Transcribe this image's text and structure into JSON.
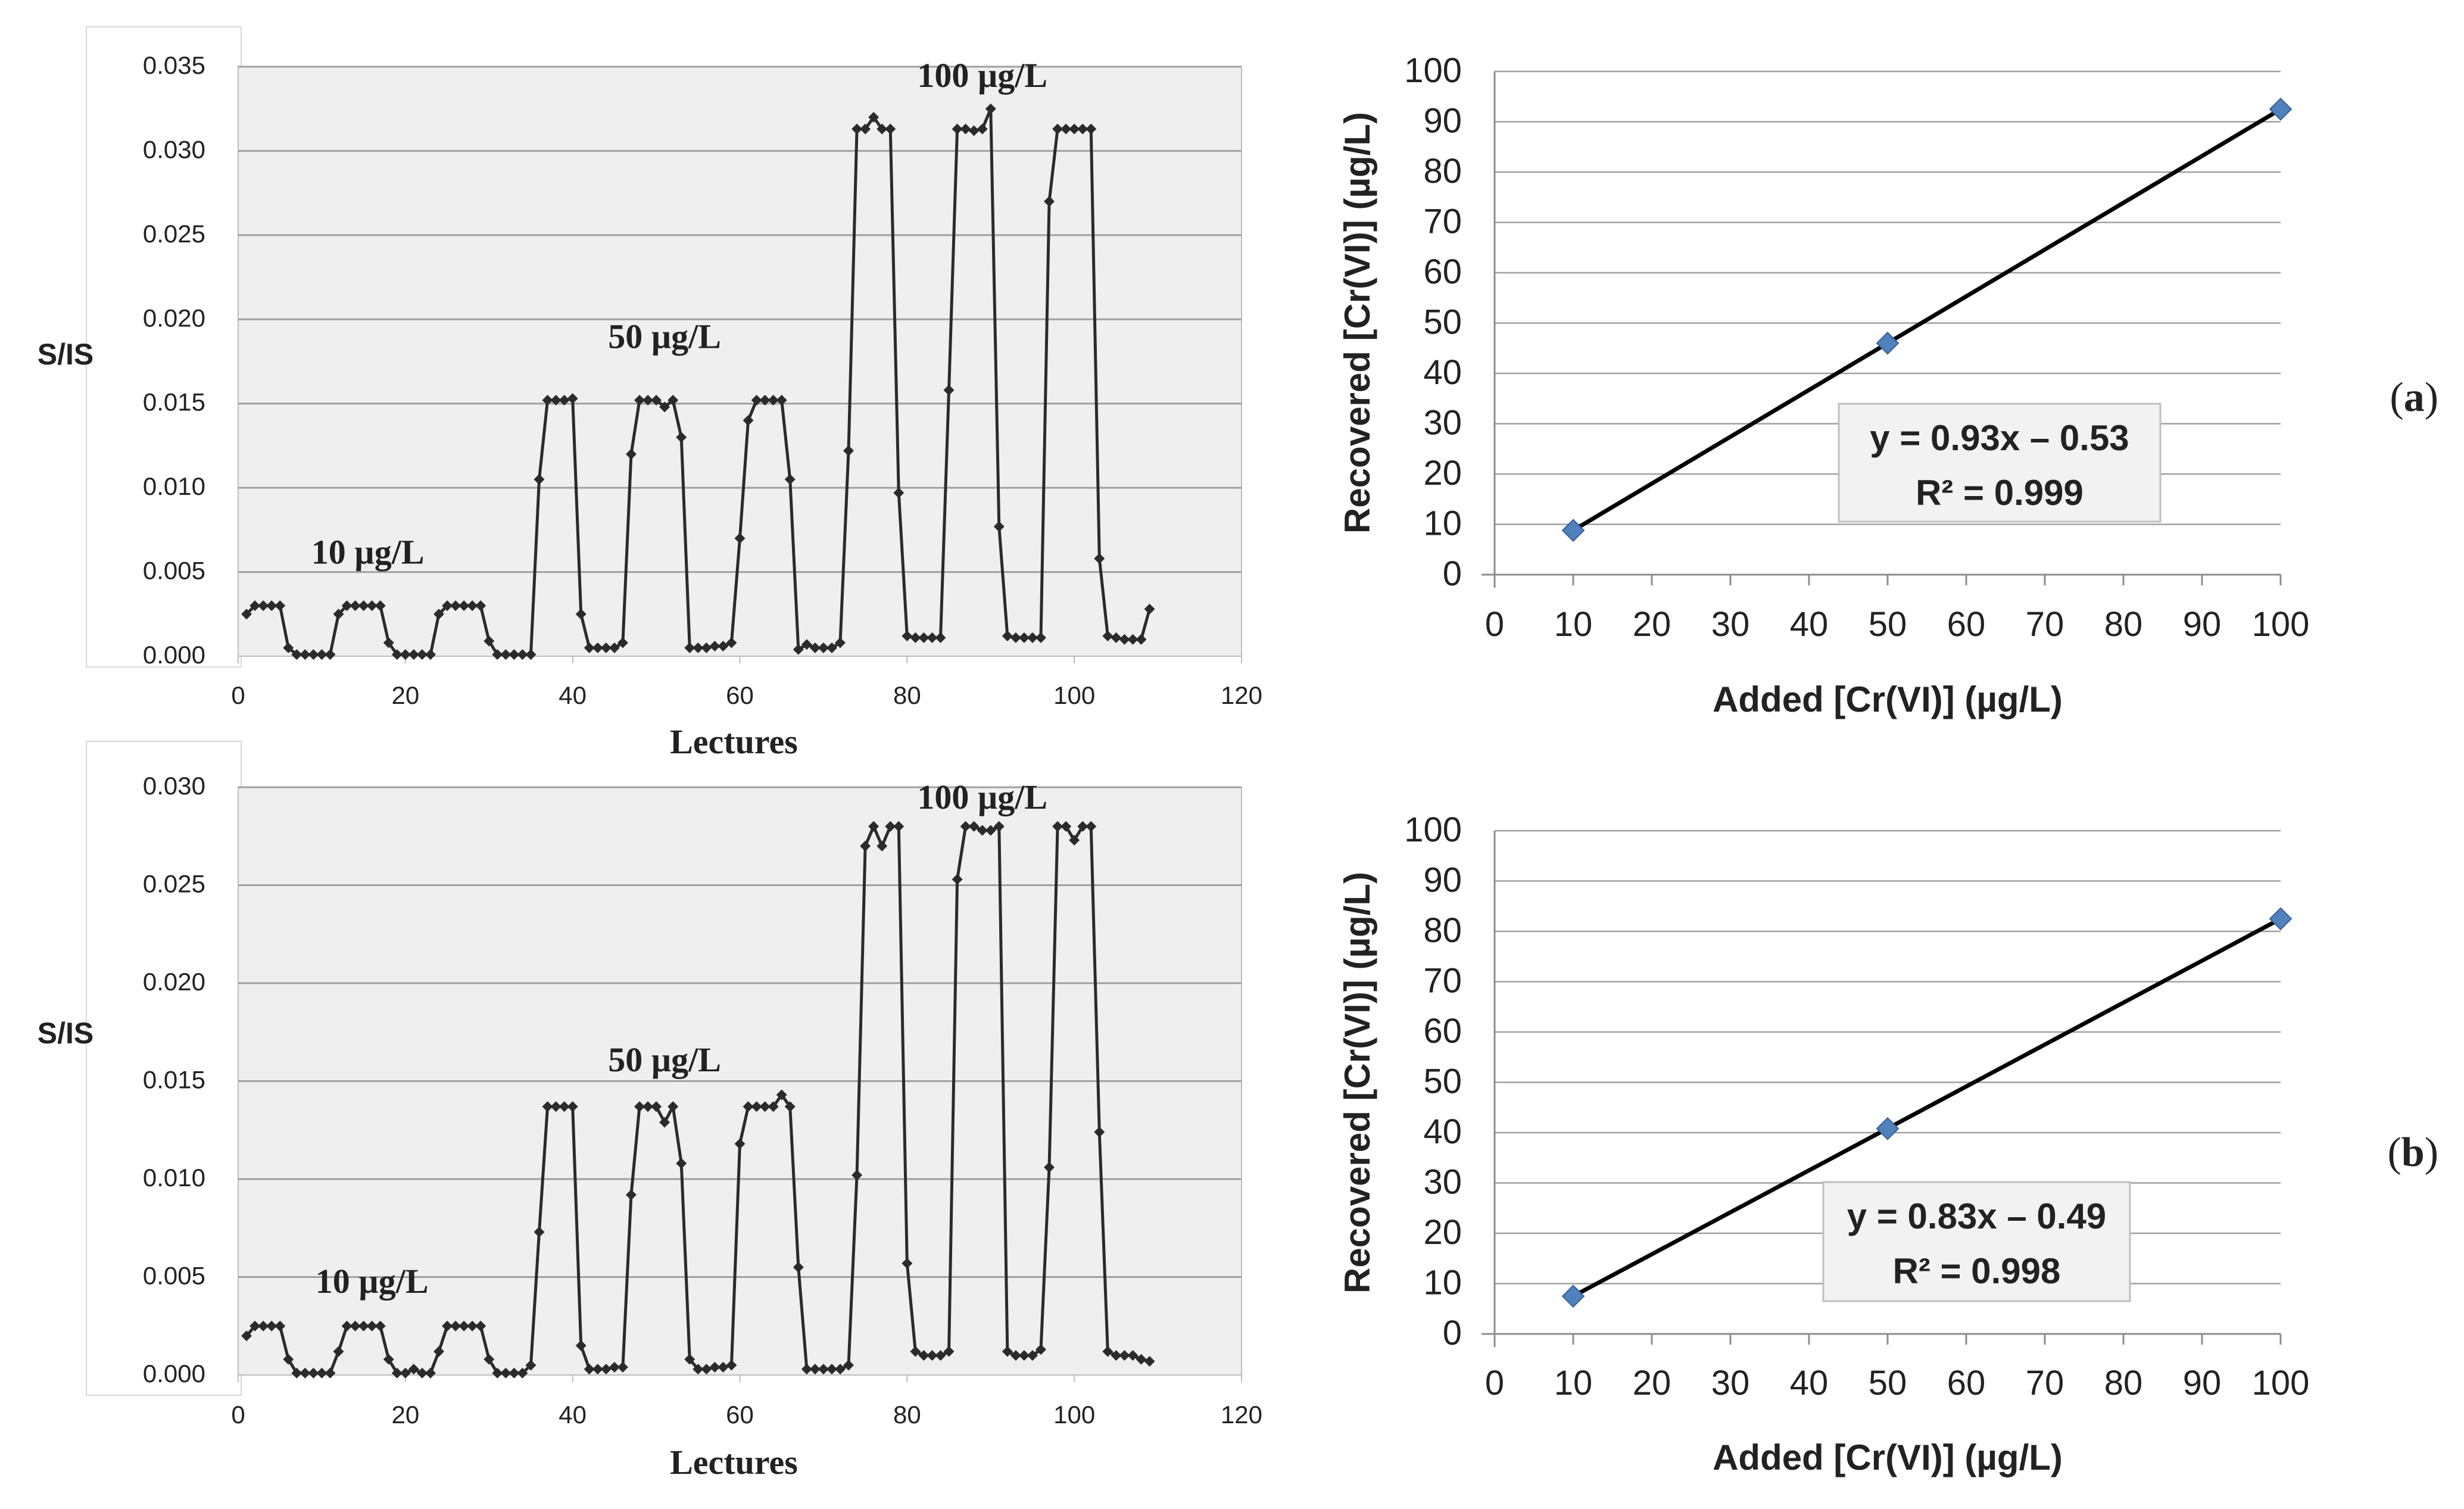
{
  "chart_data": [
    {
      "id": "a-left",
      "type": "line",
      "title": "",
      "xlabel": "Lectures",
      "ylabel": "S/IS",
      "xlim": [
        0,
        120
      ],
      "ylim": [
        0,
        0.035
      ],
      "xticks": [
        "0",
        "20",
        "40",
        "60",
        "80",
        "100",
        "120"
      ],
      "yticks": [
        "0.000",
        "0.005",
        "0.010",
        "0.015",
        "0.020",
        "0.025",
        "0.030",
        "0.035"
      ],
      "annotations": [
        {
          "text": "10 µg/L",
          "x": 15.5,
          "y": 0.0055
        },
        {
          "text": "50 µg/L",
          "x": 51,
          "y": 0.0183
        },
        {
          "text": "100 µg/L",
          "x": 89,
          "y": 0.0338
        }
      ],
      "series": [
        {
          "name": "S/IS",
          "x": [
            1,
            2,
            3,
            4,
            5,
            6,
            7,
            8,
            9,
            10,
            11,
            12,
            13,
            14,
            15,
            16,
            17,
            18,
            19,
            20,
            21,
            22,
            23,
            24,
            25,
            26,
            27,
            28,
            29,
            30,
            31,
            32,
            33,
            34,
            35,
            36,
            37,
            38,
            39,
            40,
            41,
            42,
            43,
            44,
            45,
            46,
            47,
            48,
            49,
            50,
            51,
            52,
            53,
            54,
            55,
            56,
            57,
            58,
            59,
            60,
            61,
            62,
            63,
            64,
            65,
            66,
            67,
            68,
            69,
            70,
            71,
            72,
            73,
            74,
            75,
            76,
            77,
            78,
            79,
            80,
            81,
            82,
            83,
            84,
            85,
            86,
            87,
            88,
            89,
            90,
            91,
            92,
            93,
            94,
            95,
            96,
            97,
            98,
            99,
            100,
            101,
            102,
            103,
            104,
            105,
            106,
            107,
            108,
            109
          ],
          "values": [
            0.0025,
            0.003,
            0.003,
            0.003,
            0.003,
            0.0005,
            0.0001,
            0.0001,
            0.0001,
            0.0001,
            0.0001,
            0.0025,
            0.003,
            0.003,
            0.003,
            0.003,
            0.003,
            0.0008,
            0.0001,
            0.0001,
            0.0001,
            0.0001,
            0.0001,
            0.0025,
            0.003,
            0.003,
            0.003,
            0.003,
            0.003,
            0.0009,
            0.0001,
            0.0001,
            0.0001,
            0.0001,
            0.0001,
            0.0105,
            0.0152,
            0.0152,
            0.0152,
            0.0153,
            0.0025,
            0.0005,
            0.0005,
            0.0005,
            0.0005,
            0.0008,
            0.012,
            0.0152,
            0.0152,
            0.0152,
            0.0148,
            0.0152,
            0.013,
            0.0005,
            0.0005,
            0.0005,
            0.0006,
            0.0006,
            0.0008,
            0.007,
            0.014,
            0.0152,
            0.0152,
            0.0152,
            0.0152,
            0.0105,
            0.0004,
            0.0007,
            0.0005,
            0.0005,
            0.0005,
            0.0008,
            0.0122,
            0.0313,
            0.0313,
            0.032,
            0.0313,
            0.0313,
            0.0097,
            0.0012,
            0.0011,
            0.0011,
            0.0011,
            0.0011,
            0.0158,
            0.0313,
            0.0313,
            0.0312,
            0.0313,
            0.0325,
            0.0077,
            0.0012,
            0.0011,
            0.0011,
            0.0011,
            0.0011,
            0.027,
            0.0313,
            0.0313,
            0.0313,
            0.0313,
            0.0313,
            0.0058,
            0.0012,
            0.0011,
            0.001,
            0.001,
            0.001,
            0.0028
          ]
        }
      ]
    },
    {
      "id": "a-right",
      "type": "scatter",
      "title": "",
      "xlabel": "Added [Cr(VI)] (µg/L)",
      "ylabel": "Recovered [Cr(VI)] (µg/L)",
      "xlim": [
        0,
        100
      ],
      "ylim": [
        0,
        100
      ],
      "xticks": [
        "0",
        "10",
        "20",
        "30",
        "40",
        "50",
        "60",
        "70",
        "80",
        "90",
        "100"
      ],
      "yticks": [
        "0",
        "10",
        "20",
        "30",
        "40",
        "50",
        "60",
        "70",
        "80",
        "90",
        "100"
      ],
      "series": [
        {
          "name": "Recovered",
          "x": [
            10,
            50,
            100
          ],
          "values": [
            8.8,
            46.0,
            92.5
          ]
        }
      ],
      "trendline": {
        "slope": 0.93,
        "intercept": -0.53
      },
      "equation": "y = 0.93x – 0.53",
      "r2": "R² = 0.999",
      "panel_label": "a"
    },
    {
      "id": "b-left",
      "type": "line",
      "title": "",
      "xlabel": "Lectures",
      "ylabel": "S/IS",
      "xlim": [
        0,
        120
      ],
      "ylim": [
        0,
        0.03
      ],
      "xticks": [
        "0",
        "20",
        "40",
        "60",
        "80",
        "100",
        "120"
      ],
      "yticks": [
        "0.000",
        "0.005",
        "0.010",
        "0.015",
        "0.020",
        "0.025",
        "0.030"
      ],
      "annotations": [
        {
          "text": "10 µg/L",
          "x": 16,
          "y": 0.0042
        },
        {
          "text": "50 µg/L",
          "x": 51,
          "y": 0.0155
        },
        {
          "text": "100 µg/L",
          "x": 89,
          "y": 0.0289
        }
      ],
      "series": [
        {
          "name": "S/IS",
          "x": [
            1,
            2,
            3,
            4,
            5,
            6,
            7,
            8,
            9,
            10,
            11,
            12,
            13,
            14,
            15,
            16,
            17,
            18,
            19,
            20,
            21,
            22,
            23,
            24,
            25,
            26,
            27,
            28,
            29,
            30,
            31,
            32,
            33,
            34,
            35,
            36,
            37,
            38,
            39,
            40,
            41,
            42,
            43,
            44,
            45,
            46,
            47,
            48,
            49,
            50,
            51,
            52,
            53,
            54,
            55,
            56,
            57,
            58,
            59,
            60,
            61,
            62,
            63,
            64,
            65,
            66,
            67,
            68,
            69,
            70,
            71,
            72,
            73,
            74,
            75,
            76,
            77,
            78,
            79,
            80,
            81,
            82,
            83,
            84,
            85,
            86,
            87,
            88,
            89,
            90,
            91,
            92,
            93,
            94,
            95,
            96,
            97,
            98,
            99,
            100,
            101,
            102,
            103,
            104,
            105,
            106,
            107,
            108,
            109
          ],
          "values": [
            0.002,
            0.0025,
            0.0025,
            0.0025,
            0.0025,
            0.0008,
            0.0001,
            0.0001,
            0.0001,
            0.0001,
            0.0001,
            0.0012,
            0.0025,
            0.0025,
            0.0025,
            0.0025,
            0.0025,
            0.0008,
            0.0001,
            0.0001,
            0.0003,
            0.0001,
            0.0001,
            0.0012,
            0.0025,
            0.0025,
            0.0025,
            0.0025,
            0.0025,
            0.0008,
            0.0001,
            0.0001,
            0.0001,
            0.0001,
            0.0005,
            0.0073,
            0.0137,
            0.0137,
            0.0137,
            0.0137,
            0.0015,
            0.0003,
            0.0003,
            0.0003,
            0.0004,
            0.0004,
            0.0092,
            0.0137,
            0.0137,
            0.0137,
            0.0129,
            0.0137,
            0.0108,
            0.0008,
            0.0003,
            0.0003,
            0.0004,
            0.0004,
            0.0005,
            0.0118,
            0.0137,
            0.0137,
            0.0137,
            0.0137,
            0.0143,
            0.0137,
            0.0055,
            0.0003,
            0.0003,
            0.0003,
            0.0003,
            0.0003,
            0.0005,
            0.0102,
            0.027,
            0.028,
            0.027,
            0.028,
            0.028,
            0.0057,
            0.0012,
            0.001,
            0.001,
            0.001,
            0.0012,
            0.0253,
            0.028,
            0.028,
            0.0278,
            0.0278,
            0.028,
            0.0012,
            0.001,
            0.001,
            0.001,
            0.0013,
            0.0106,
            0.028,
            0.028,
            0.0273,
            0.028,
            0.028,
            0.0124,
            0.0012,
            0.001,
            0.001,
            0.001,
            0.0008,
            0.0007
          ]
        }
      ]
    },
    {
      "id": "b-right",
      "type": "scatter",
      "title": "",
      "xlabel": "Added [Cr(VI)] (µg/L)",
      "ylabel": "Recovered [Cr(VI)] (µg/L)",
      "xlim": [
        0,
        100
      ],
      "ylim": [
        0,
        100
      ],
      "xticks": [
        "0",
        "10",
        "20",
        "30",
        "40",
        "50",
        "60",
        "70",
        "80",
        "90",
        "100"
      ],
      "yticks": [
        "0",
        "10",
        "20",
        "30",
        "40",
        "50",
        "60",
        "70",
        "80",
        "90",
        "100"
      ],
      "series": [
        {
          "name": "Recovered",
          "x": [
            10,
            50,
            100
          ],
          "values": [
            7.5,
            40.8,
            82.5
          ]
        }
      ],
      "trendline": {
        "slope": 0.83,
        "intercept": -0.49
      },
      "equation": "y = 0.83x – 0.49",
      "r2": "R² = 0.998",
      "panel_label": "b"
    }
  ],
  "colors": {
    "plot_bg": "#efefef",
    "grid": "#a0a0a0",
    "axis": "#8c8c8c",
    "line": "#2b2b2b",
    "marker_scatter": "#4f81bd",
    "trend": "#000000",
    "text": "#222222"
  }
}
